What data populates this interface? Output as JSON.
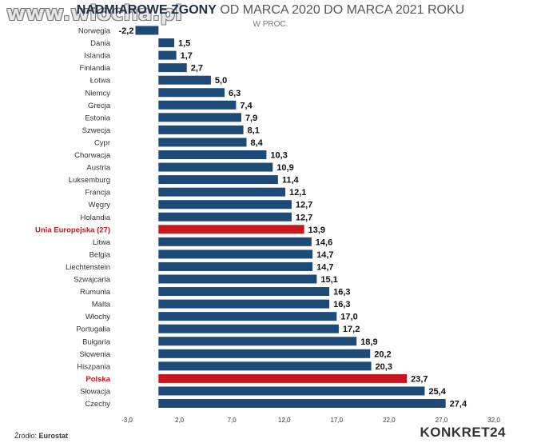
{
  "watermark": "www.wiocha.pl",
  "header": {
    "title_bold": "NADMIAROWE ZGONY",
    "title_rest": "OD MARCA 2020 DO MARCA 2021 ROKU",
    "subtitle": "W PROC."
  },
  "footer": {
    "source_label": "Źródło:",
    "source_name": "Eurostat",
    "brand": "KONKRET24"
  },
  "colors": {
    "bar": "#1e4a78",
    "highlight": "#c8161e",
    "highlight_label": "#c8161e"
  },
  "chart_data": {
    "type": "bar",
    "orientation": "horizontal",
    "title": "NADMIAROWE ZGONY OD MARCA 2020 DO MARCA 2021 ROKU",
    "subtitle": "W PROC.",
    "categories": [
      "Norwegia",
      "Dania",
      "Islandia",
      "Finlandia",
      "Łotwa",
      "Niemcy",
      "Grecja",
      "Estonia",
      "Szwecja",
      "Cypr",
      "Chorwacja",
      "Austria",
      "Luksemburg",
      "Francja",
      "Węgry",
      "Holandia",
      "Unia Europejska (27)",
      "Litwa",
      "Belgia",
      "Liechtenstein",
      "Szwajcaria",
      "Rumunia",
      "Malta",
      "Włochy",
      "Portugalia",
      "Bułgaria",
      "Słowenia",
      "Hiszpania",
      "Polska",
      "Słowacja",
      "Czechy"
    ],
    "values": [
      -2.2,
      1.5,
      1.7,
      2.7,
      5.0,
      6.3,
      7.4,
      7.9,
      8.1,
      8.4,
      10.3,
      10.9,
      11.4,
      12.1,
      12.7,
      12.7,
      13.9,
      14.6,
      14.7,
      14.7,
      15.1,
      16.3,
      16.3,
      17.0,
      17.2,
      18.9,
      20.2,
      20.3,
      23.7,
      25.4,
      27.4
    ],
    "value_labels": [
      "-2,2",
      "1,5",
      "1,7",
      "2,7",
      "5,0",
      "6,3",
      "7,4",
      "7,9",
      "8,1",
      "8,4",
      "10,3",
      "10,9",
      "11,4",
      "12,1",
      "12,7",
      "12,7",
      "13,9",
      "14,6",
      "14,7",
      "14,7",
      "15,1",
      "16,3",
      "16,3",
      "17,0",
      "17,2",
      "18,9",
      "20,2",
      "20,3",
      "23,7",
      "25,4",
      "27,4"
    ],
    "highlighted": [
      "Unia Europejska (27)",
      "Polska"
    ],
    "xlim": [
      -3.0,
      32.0
    ],
    "x_ticks": [
      -3.0,
      2.0,
      7.0,
      12.0,
      17.0,
      22.0,
      27.0,
      32.0
    ],
    "x_tick_labels": [
      "-3,0",
      "2,0",
      "7,0",
      "12,0",
      "17,0",
      "22,0",
      "27,0",
      "32,0"
    ],
    "grid": false,
    "legend": "none"
  }
}
